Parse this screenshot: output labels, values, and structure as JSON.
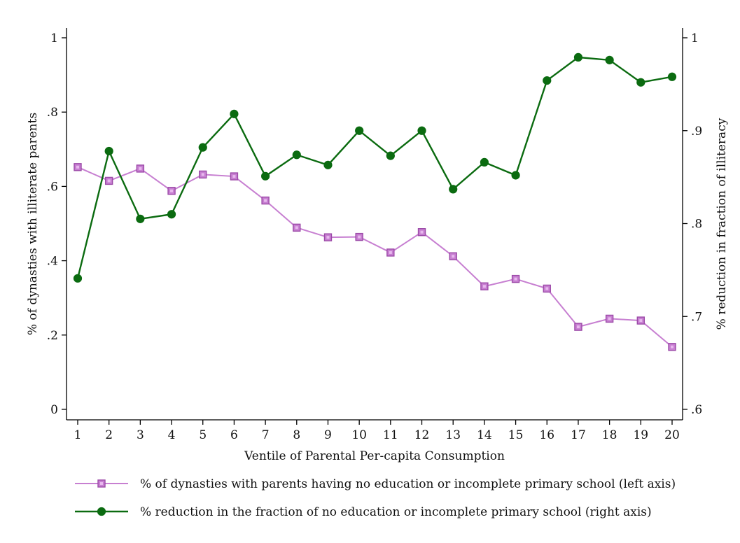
{
  "chart_data": {
    "type": "line",
    "xlabel": "Ventile of Parental Per-capita Consumption",
    "x": [
      1,
      2,
      3,
      4,
      5,
      6,
      7,
      8,
      9,
      10,
      11,
      12,
      13,
      14,
      15,
      16,
      17,
      18,
      19,
      20
    ],
    "left_axis": {
      "label": "% of dynasties with illiterate parents",
      "ylim": [
        0,
        1
      ],
      "ticks": [
        0,
        0.2,
        0.4,
        0.6,
        0.8,
        1
      ],
      "tick_labels": [
        "0",
        ".2",
        ".4",
        ".6",
        ".8",
        "1"
      ]
    },
    "right_axis": {
      "label": "% reduction in fraction of illiteracy",
      "ylim": [
        0.6,
        1
      ],
      "ticks": [
        0.6,
        0.7,
        0.8,
        0.9,
        1
      ],
      "tick_labels": [
        ".6",
        ".7",
        ".8",
        ".9",
        "1"
      ]
    },
    "series": [
      {
        "name": "% of dynasties with parents having no education or incomplete primary school (left axis)",
        "axis": "left",
        "marker": "square",
        "color": "#c77fd1",
        "values": [
          0.652,
          0.615,
          0.648,
          0.588,
          0.632,
          0.627,
          0.562,
          0.489,
          0.463,
          0.464,
          0.422,
          0.477,
          0.412,
          0.331,
          0.351,
          0.325,
          0.222,
          0.244,
          0.239,
          0.168
        ]
      },
      {
        "name": "% reduction in the fraction of no education or incomplete primary school (right axis)",
        "axis": "right",
        "marker": "circle",
        "color": "#0b6b10",
        "values": [
          0.741,
          0.878,
          0.805,
          0.81,
          0.882,
          0.918,
          0.851,
          0.874,
          0.863,
          0.9,
          0.873,
          0.9,
          0.837,
          0.866,
          0.852,
          0.954,
          0.979,
          0.976,
          0.952,
          0.958
        ]
      }
    ],
    "grid": false,
    "legend_position": "bottom"
  }
}
